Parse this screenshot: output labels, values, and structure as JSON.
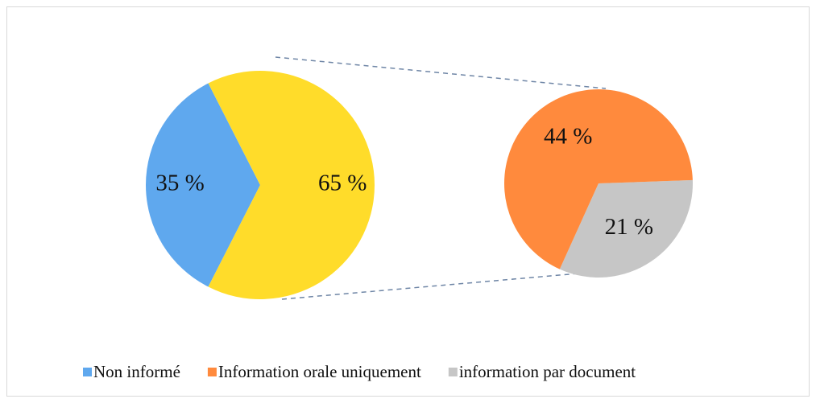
{
  "chart_data": {
    "type": "pie",
    "categories": [
      "Non informé",
      "Information orale uniquement",
      "information par document"
    ],
    "values": [
      35,
      44,
      21
    ],
    "value_labels": [
      "35 %",
      "44 %",
      "21 %"
    ],
    "colors": [
      "#5fa8ee",
      "#ff8a3d",
      "#c6c6c6"
    ],
    "other_value": 65,
    "other_label": "65 %",
    "other_color": "#ffdc2a"
  }
}
